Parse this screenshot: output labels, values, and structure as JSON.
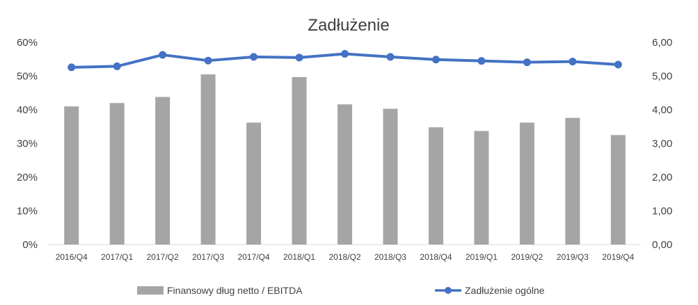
{
  "chart_data": {
    "type": "bar+line",
    "title": "Zadłużenie",
    "categories": [
      "2016/Q4",
      "2017/Q1",
      "2017/Q2",
      "2017/Q3",
      "2017/Q4",
      "2018/Q1",
      "2018/Q2",
      "2018/Q3",
      "2018/Q4",
      "2019/Q1",
      "2019/Q2",
      "2019/Q3",
      "2019/Q4"
    ],
    "series": [
      {
        "name": "Finansowy dług netto / EBITDA",
        "type": "bar",
        "axis": "right",
        "color": "#a5a5a5",
        "values": [
          4.1,
          4.2,
          4.38,
          5.05,
          3.62,
          4.97,
          4.16,
          4.03,
          3.48,
          3.37,
          3.62,
          3.76,
          3.25
        ]
      },
      {
        "name": "Zadłużenie ogólne",
        "type": "line",
        "axis": "left",
        "color": "#4472c4",
        "values": [
          52.6,
          52.9,
          56.3,
          54.6,
          55.7,
          55.5,
          56.6,
          55.7,
          54.9,
          54.5,
          54.1,
          54.3,
          53.4
        ]
      }
    ],
    "yleft": {
      "ylim": [
        0,
        60
      ],
      "ticks": [
        "0%",
        "10%",
        "20%",
        "30%",
        "40%",
        "50%",
        "60%"
      ]
    },
    "yright": {
      "ylim": [
        0,
        6
      ],
      "ticks": [
        "0,00",
        "1,00",
        "2,00",
        "3,00",
        "4,00",
        "5,00",
        "6,00"
      ]
    },
    "grid": false,
    "legend_position": "bottom"
  }
}
